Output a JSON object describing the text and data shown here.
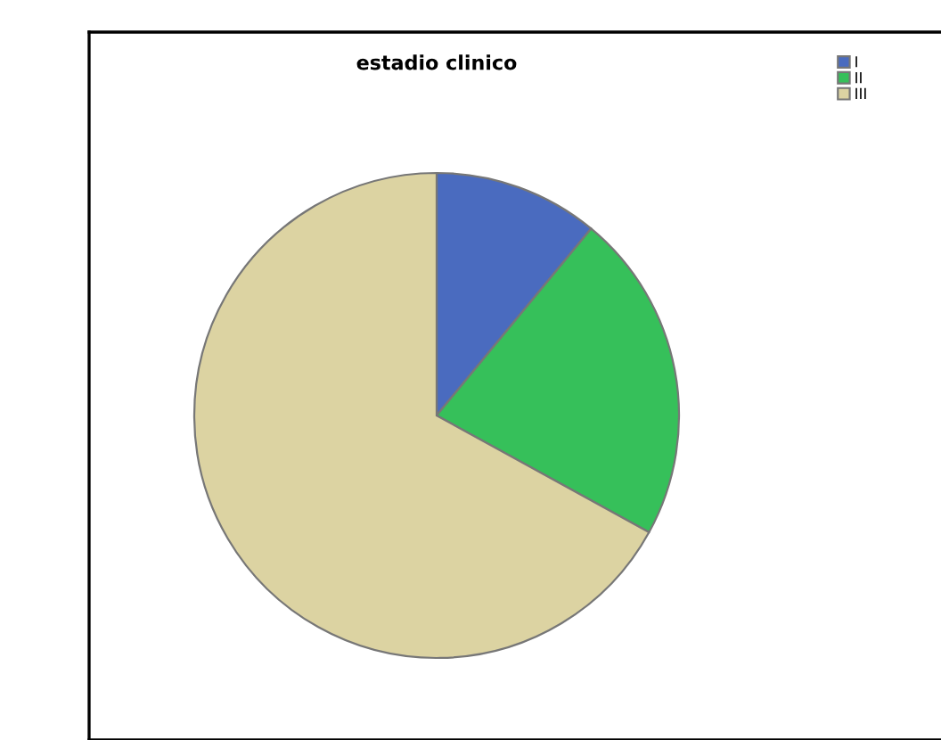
{
  "chart_data": {
    "type": "pie",
    "title": "estadio clinico",
    "categories": [
      "I",
      "II",
      "III"
    ],
    "values": [
      11,
      22,
      67
    ],
    "colors": [
      "#4a6bbf",
      "#36c05a",
      "#dcd3a2"
    ],
    "legend": "top right"
  }
}
